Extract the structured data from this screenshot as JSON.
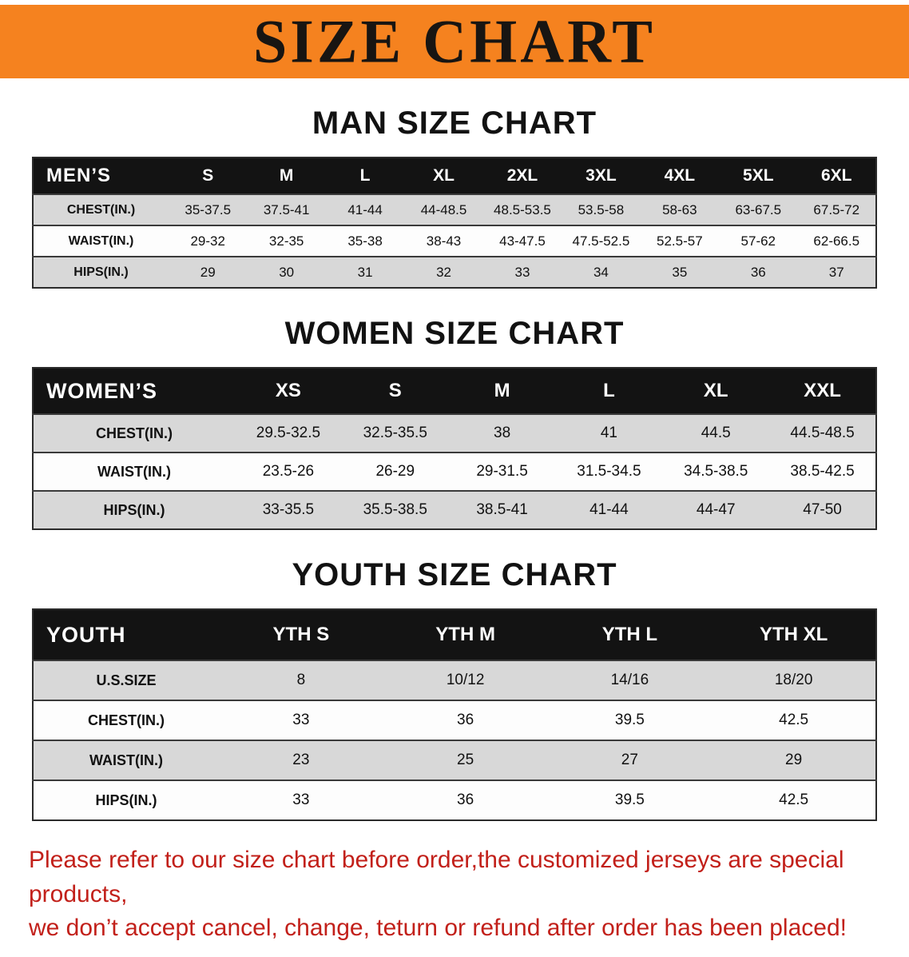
{
  "banner": {
    "title": "SIZE CHART",
    "bg_color": "#f5821f",
    "text_color": "#181512"
  },
  "colors": {
    "table_header_bg": "#131313",
    "table_header_text": "#ffffff",
    "row_stripe_gray": "#d8d8d8",
    "notice_red": "#c2201a"
  },
  "sections": [
    {
      "heading": "MAN SIZE CHART",
      "table": {
        "header": [
          "MEN’S",
          "S",
          "M",
          "L",
          "XL",
          "2XL",
          "3XL",
          "4XL",
          "5XL",
          "6XL"
        ],
        "rows": [
          {
            "label": "CHEST(IN.)",
            "values": [
              "35-37.5",
              "37.5-41",
              "41-44",
              "44-48.5",
              "48.5-53.5",
              "53.5-58",
              "58-63",
              "63-67.5",
              "67.5-72"
            ]
          },
          {
            "label": "WAIST(IN.)",
            "values": [
              "29-32",
              "32-35",
              "35-38",
              "38-43",
              "43-47.5",
              "47.5-52.5",
              "52.5-57",
              "57-62",
              "62-66.5"
            ]
          },
          {
            "label": "HIPS(IN.)",
            "values": [
              "29",
              "30",
              "31",
              "32",
              "33",
              "34",
              "35",
              "36",
              "37"
            ]
          }
        ]
      }
    },
    {
      "heading": "WOMEN SIZE CHART",
      "table": {
        "header": [
          "WOMEN’S",
          "XS",
          "S",
          "M",
          "L",
          "XL",
          "XXL"
        ],
        "rows": [
          {
            "label": "CHEST(IN.)",
            "values": [
              "29.5-32.5",
              "32.5-35.5",
              "38",
              "41",
              "44.5",
              "44.5-48.5"
            ]
          },
          {
            "label": "WAIST(IN.)",
            "values": [
              "23.5-26",
              "26-29",
              "29-31.5",
              "31.5-34.5",
              "34.5-38.5",
              "38.5-42.5"
            ]
          },
          {
            "label": "HIPS(IN.)",
            "values": [
              "33-35.5",
              "35.5-38.5",
              "38.5-41",
              "41-44",
              "44-47",
              "47-50"
            ]
          }
        ]
      }
    },
    {
      "heading": "YOUTH SIZE CHART",
      "table": {
        "header": [
          "YOUTH",
          "YTH S",
          "YTH M",
          "YTH L",
          "YTH XL"
        ],
        "rows": [
          {
            "label": "U.S.SIZE",
            "values": [
              "8",
              "10/12",
              "14/16",
              "18/20"
            ]
          },
          {
            "label": "CHEST(IN.)",
            "values": [
              "33",
              "36",
              "39.5",
              "42.5"
            ]
          },
          {
            "label": "WAIST(IN.)",
            "values": [
              "23",
              "25",
              "27",
              "29"
            ]
          },
          {
            "label": "HIPS(IN.)",
            "values": [
              "33",
              "36",
              "39.5",
              "42.5"
            ]
          }
        ]
      }
    }
  ],
  "notice": {
    "line1": "Please refer to our size chart before order,the customized jerseys are special products,",
    "line2": "we don’t accept cancel, change, teturn or refund after order has been placed!"
  }
}
